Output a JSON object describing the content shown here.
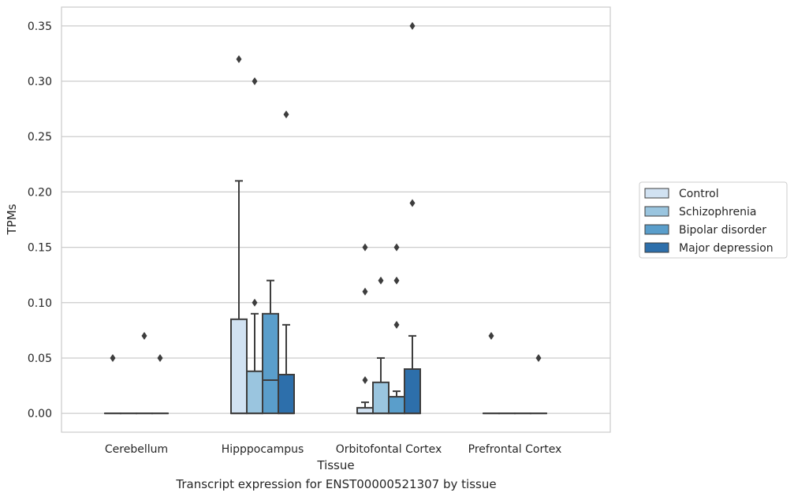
{
  "caption": "Transcript expression for ENST00000521307 by tissue",
  "chart_data": {
    "type": "boxplot",
    "xlabel": "Tissue",
    "ylabel": "TPMs",
    "ylim": [
      -0.017,
      0.367
    ],
    "yticks": [
      0.0,
      0.05,
      0.1,
      0.15,
      0.2,
      0.25,
      0.3,
      0.35
    ],
    "ytick_labels": [
      "0.00",
      "0.05",
      "0.10",
      "0.15",
      "0.20",
      "0.25",
      "0.30",
      "0.35"
    ],
    "grid": "horizontal",
    "legend_position": "right",
    "categories": [
      "Cerebellum",
      "Hipppocampus",
      "Orbitofontal Cortex",
      "Prefrontal Cortex"
    ],
    "series": [
      {
        "name": "Control",
        "color": "#d1e2f2",
        "boxes": [
          {
            "q1": 0,
            "median": 0,
            "q3": 0,
            "whisker_low": 0,
            "whisker_high": 0,
            "outliers": [
              0.05
            ]
          },
          {
            "q1": 0,
            "median": 0,
            "q3": 0.085,
            "whisker_low": 0,
            "whisker_high": 0.21,
            "outliers": [
              0.32
            ]
          },
          {
            "q1": 0,
            "median": 0,
            "q3": 0.005,
            "whisker_low": 0,
            "whisker_high": 0.01,
            "outliers": [
              0.03,
              0.11,
              0.15
            ]
          },
          {
            "q1": 0,
            "median": 0,
            "q3": 0,
            "whisker_low": 0,
            "whisker_high": 0,
            "outliers": [
              0.07
            ]
          }
        ]
      },
      {
        "name": "Schizophrenia",
        "color": "#9ac5df",
        "boxes": [
          {
            "q1": 0,
            "median": 0,
            "q3": 0,
            "whisker_low": 0,
            "whisker_high": 0,
            "outliers": []
          },
          {
            "q1": 0,
            "median": 0,
            "q3": 0.038,
            "whisker_low": 0,
            "whisker_high": 0.09,
            "outliers": [
              0.1,
              0.3
            ]
          },
          {
            "q1": 0,
            "median": 0,
            "q3": 0.028,
            "whisker_low": 0,
            "whisker_high": 0.05,
            "outliers": [
              0.12
            ]
          },
          {
            "q1": 0,
            "median": 0,
            "q3": 0,
            "whisker_low": 0,
            "whisker_high": 0,
            "outliers": []
          }
        ]
      },
      {
        "name": "Bipolar disorder",
        "color": "#5a9ecb",
        "boxes": [
          {
            "q1": 0,
            "median": 0,
            "q3": 0,
            "whisker_low": 0,
            "whisker_high": 0,
            "outliers": [
              0.07
            ]
          },
          {
            "q1": 0,
            "median": 0.03,
            "q3": 0.09,
            "whisker_low": 0,
            "whisker_high": 0.12,
            "outliers": []
          },
          {
            "q1": 0,
            "median": 0,
            "q3": 0.015,
            "whisker_low": 0,
            "whisker_high": 0.02,
            "outliers": [
              0.08,
              0.12,
              0.15
            ]
          },
          {
            "q1": 0,
            "median": 0,
            "q3": 0,
            "whisker_low": 0,
            "whisker_high": 0,
            "outliers": []
          }
        ]
      },
      {
        "name": "Major depression",
        "color": "#2d6fab",
        "boxes": [
          {
            "q1": 0,
            "median": 0,
            "q3": 0,
            "whisker_low": 0,
            "whisker_high": 0,
            "outliers": [
              0.05
            ]
          },
          {
            "q1": 0,
            "median": 0,
            "q3": 0.035,
            "whisker_low": 0,
            "whisker_high": 0.08,
            "outliers": [
              0.27
            ]
          },
          {
            "q1": 0,
            "median": 0,
            "q3": 0.04,
            "whisker_low": 0,
            "whisker_high": 0.07,
            "outliers": [
              0.19,
              0.35
            ]
          },
          {
            "q1": 0,
            "median": 0,
            "q3": 0,
            "whisker_low": 0,
            "whisker_high": 0,
            "outliers": [
              0.05
            ]
          }
        ]
      }
    ]
  }
}
